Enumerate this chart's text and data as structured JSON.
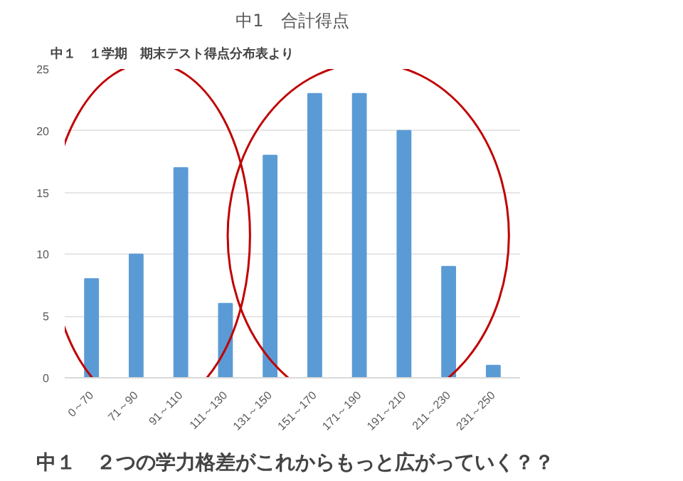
{
  "chart_data": {
    "type": "bar",
    "title": "中1　合計得点",
    "categories": [
      "0～70",
      "71～90",
      "91～110",
      "111～130",
      "131～150",
      "151～170",
      "171～190",
      "191～210",
      "211～230",
      "231～250"
    ],
    "values": [
      8,
      10,
      17,
      6,
      18,
      23,
      23,
      20,
      9,
      1
    ],
    "color": "#5b9bd5",
    "ylim": [
      0,
      25
    ],
    "yticks": [
      0,
      5,
      10,
      15,
      20,
      25
    ],
    "grid": "y",
    "annotations": [
      "中１　１学期　期末テスト得点分布表より",
      "中１　２つの学力格差がこれからもっと広がっていく？？"
    ]
  }
}
